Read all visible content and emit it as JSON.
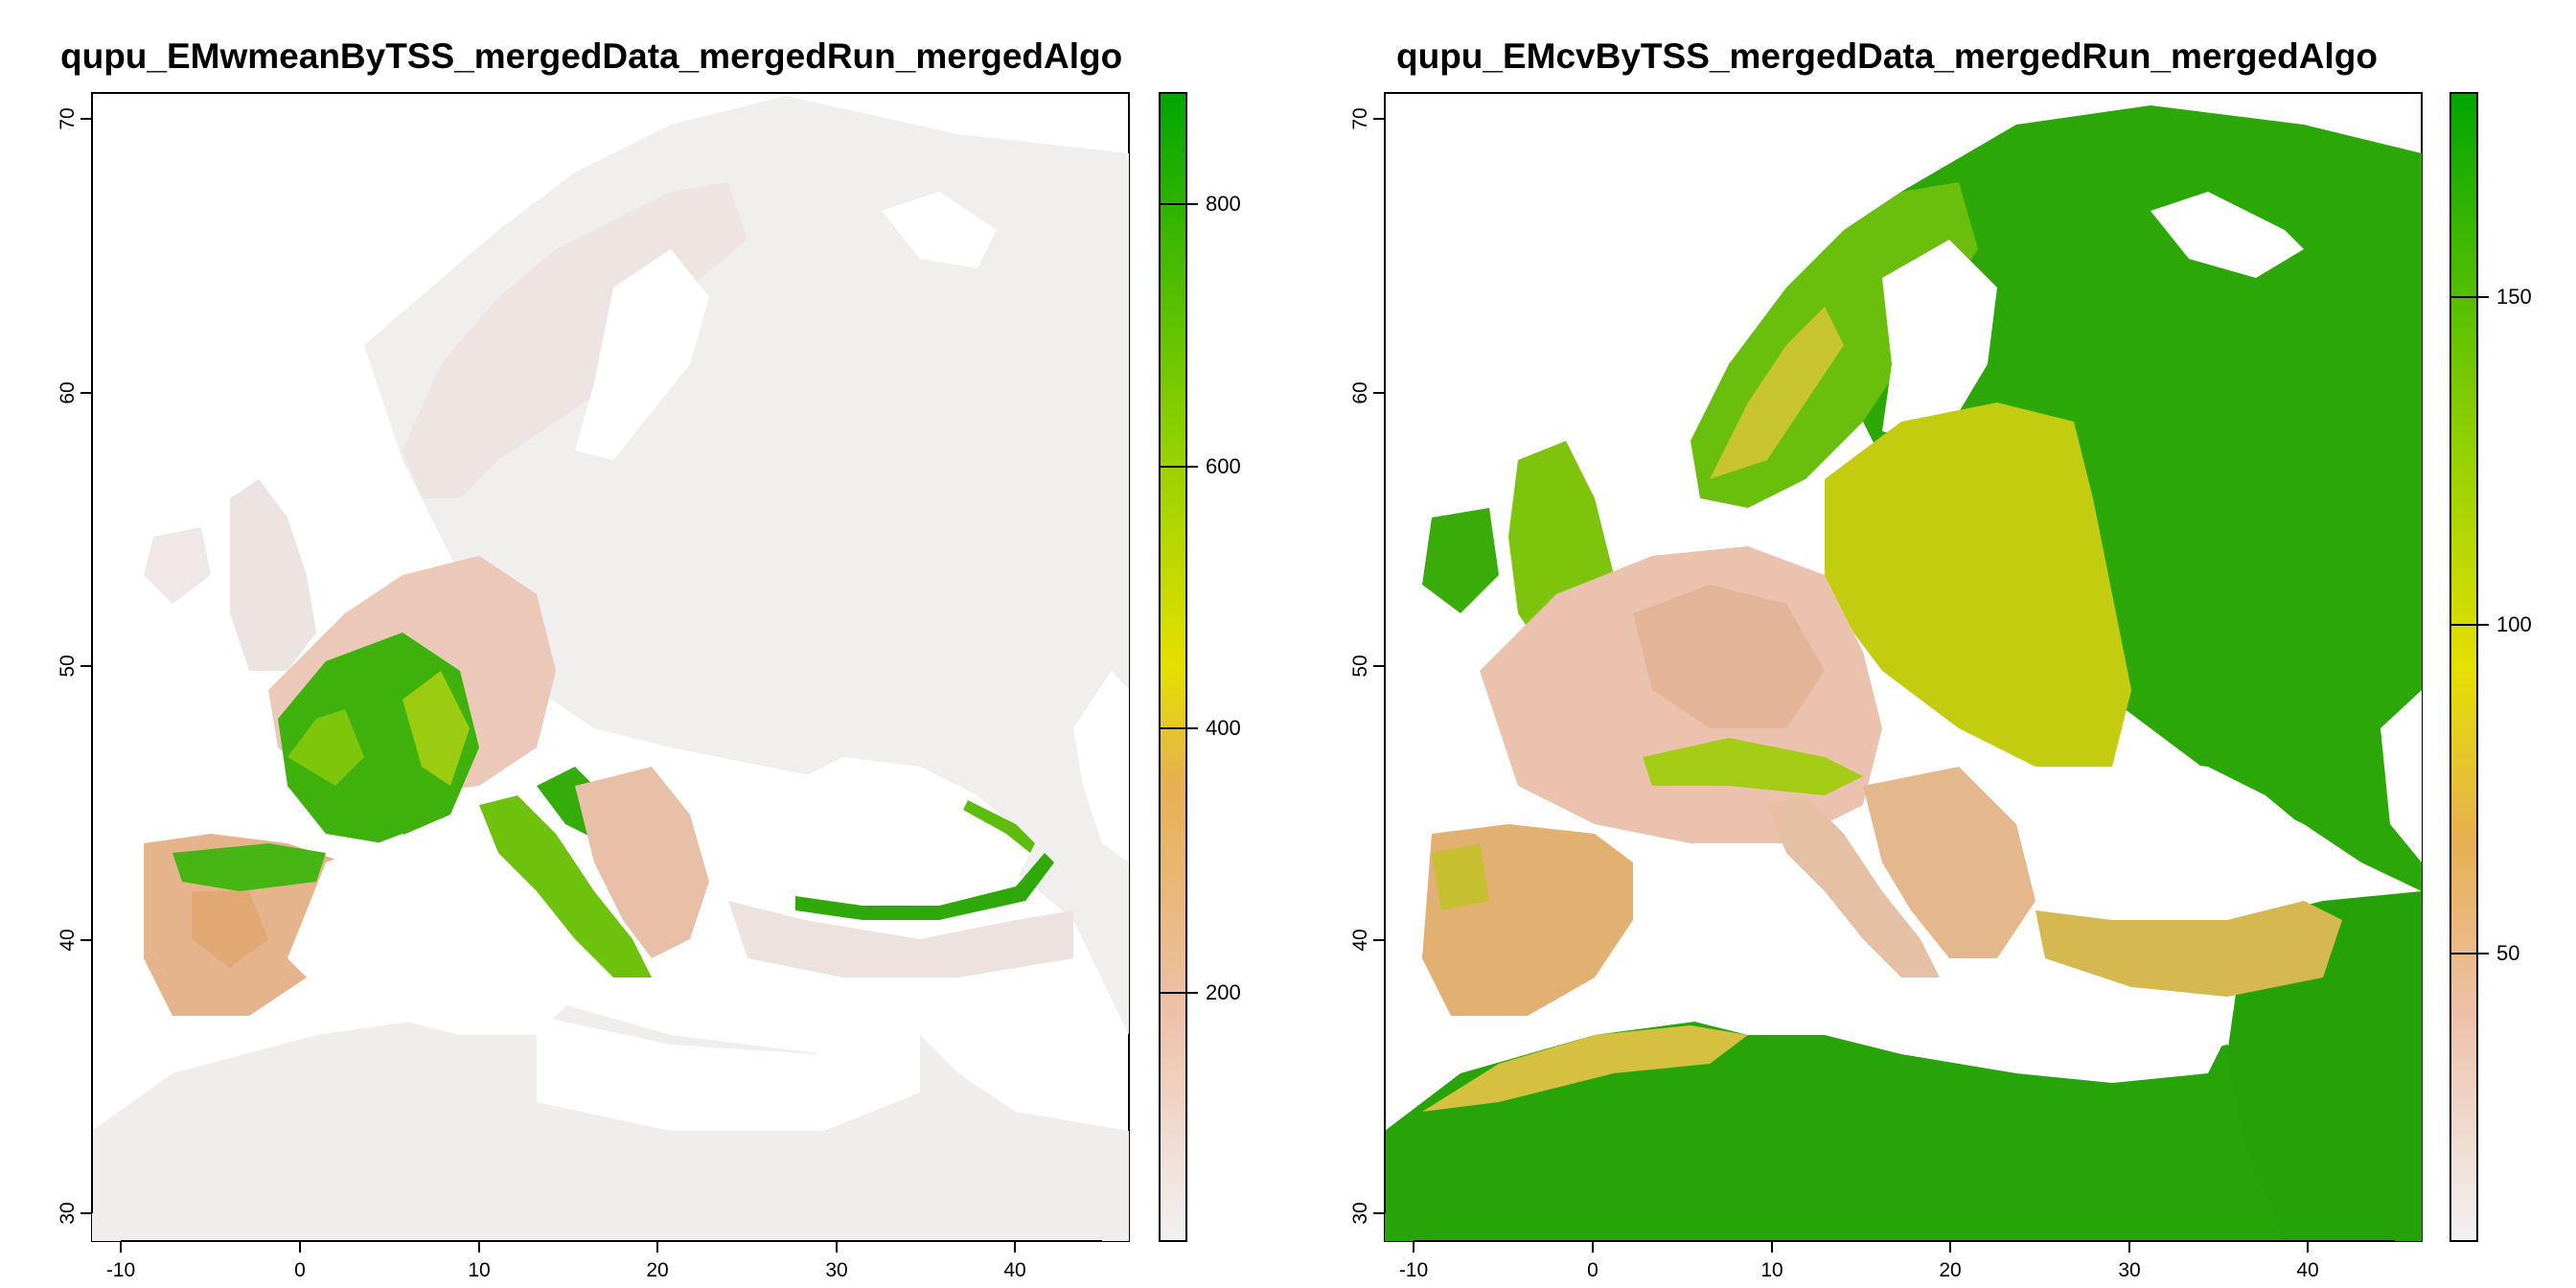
{
  "panels": [
    {
      "title": "qupu_EMwmeanByTSS_mergedData_mergedRun_mergedAlgo",
      "x_ticks": [
        "-10",
        "0",
        "10",
        "20",
        "30",
        "40"
      ],
      "y_ticks": [
        "30",
        "40",
        "50",
        "60",
        "70"
      ],
      "legend_ticks": [
        "200",
        "400",
        "600",
        "800"
      ],
      "legend_range": [
        0,
        880
      ],
      "legend_colors": [
        "#f2f2f2",
        "#eec0a8",
        "#e6b050",
        "#e5e000",
        "#8fd000",
        "#00a600"
      ]
    },
    {
      "title": "qupu_EMcvByTSS_mergedData_mergedRun_mergedAlgo",
      "x_ticks": [
        "-10",
        "0",
        "10",
        "20",
        "30",
        "40"
      ],
      "y_ticks": [
        "30",
        "40",
        "50",
        "60",
        "70"
      ],
      "legend_ticks": [
        "50",
        "100",
        "150"
      ],
      "legend_range": [
        5,
        180
      ],
      "legend_colors": [
        "#f2f2f2",
        "#eec0a8",
        "#e6b050",
        "#e5e000",
        "#8fd000",
        "#00a600"
      ]
    }
  ],
  "x_range": [
    -12,
    47
  ],
  "y_range": [
    29,
    71
  ]
}
